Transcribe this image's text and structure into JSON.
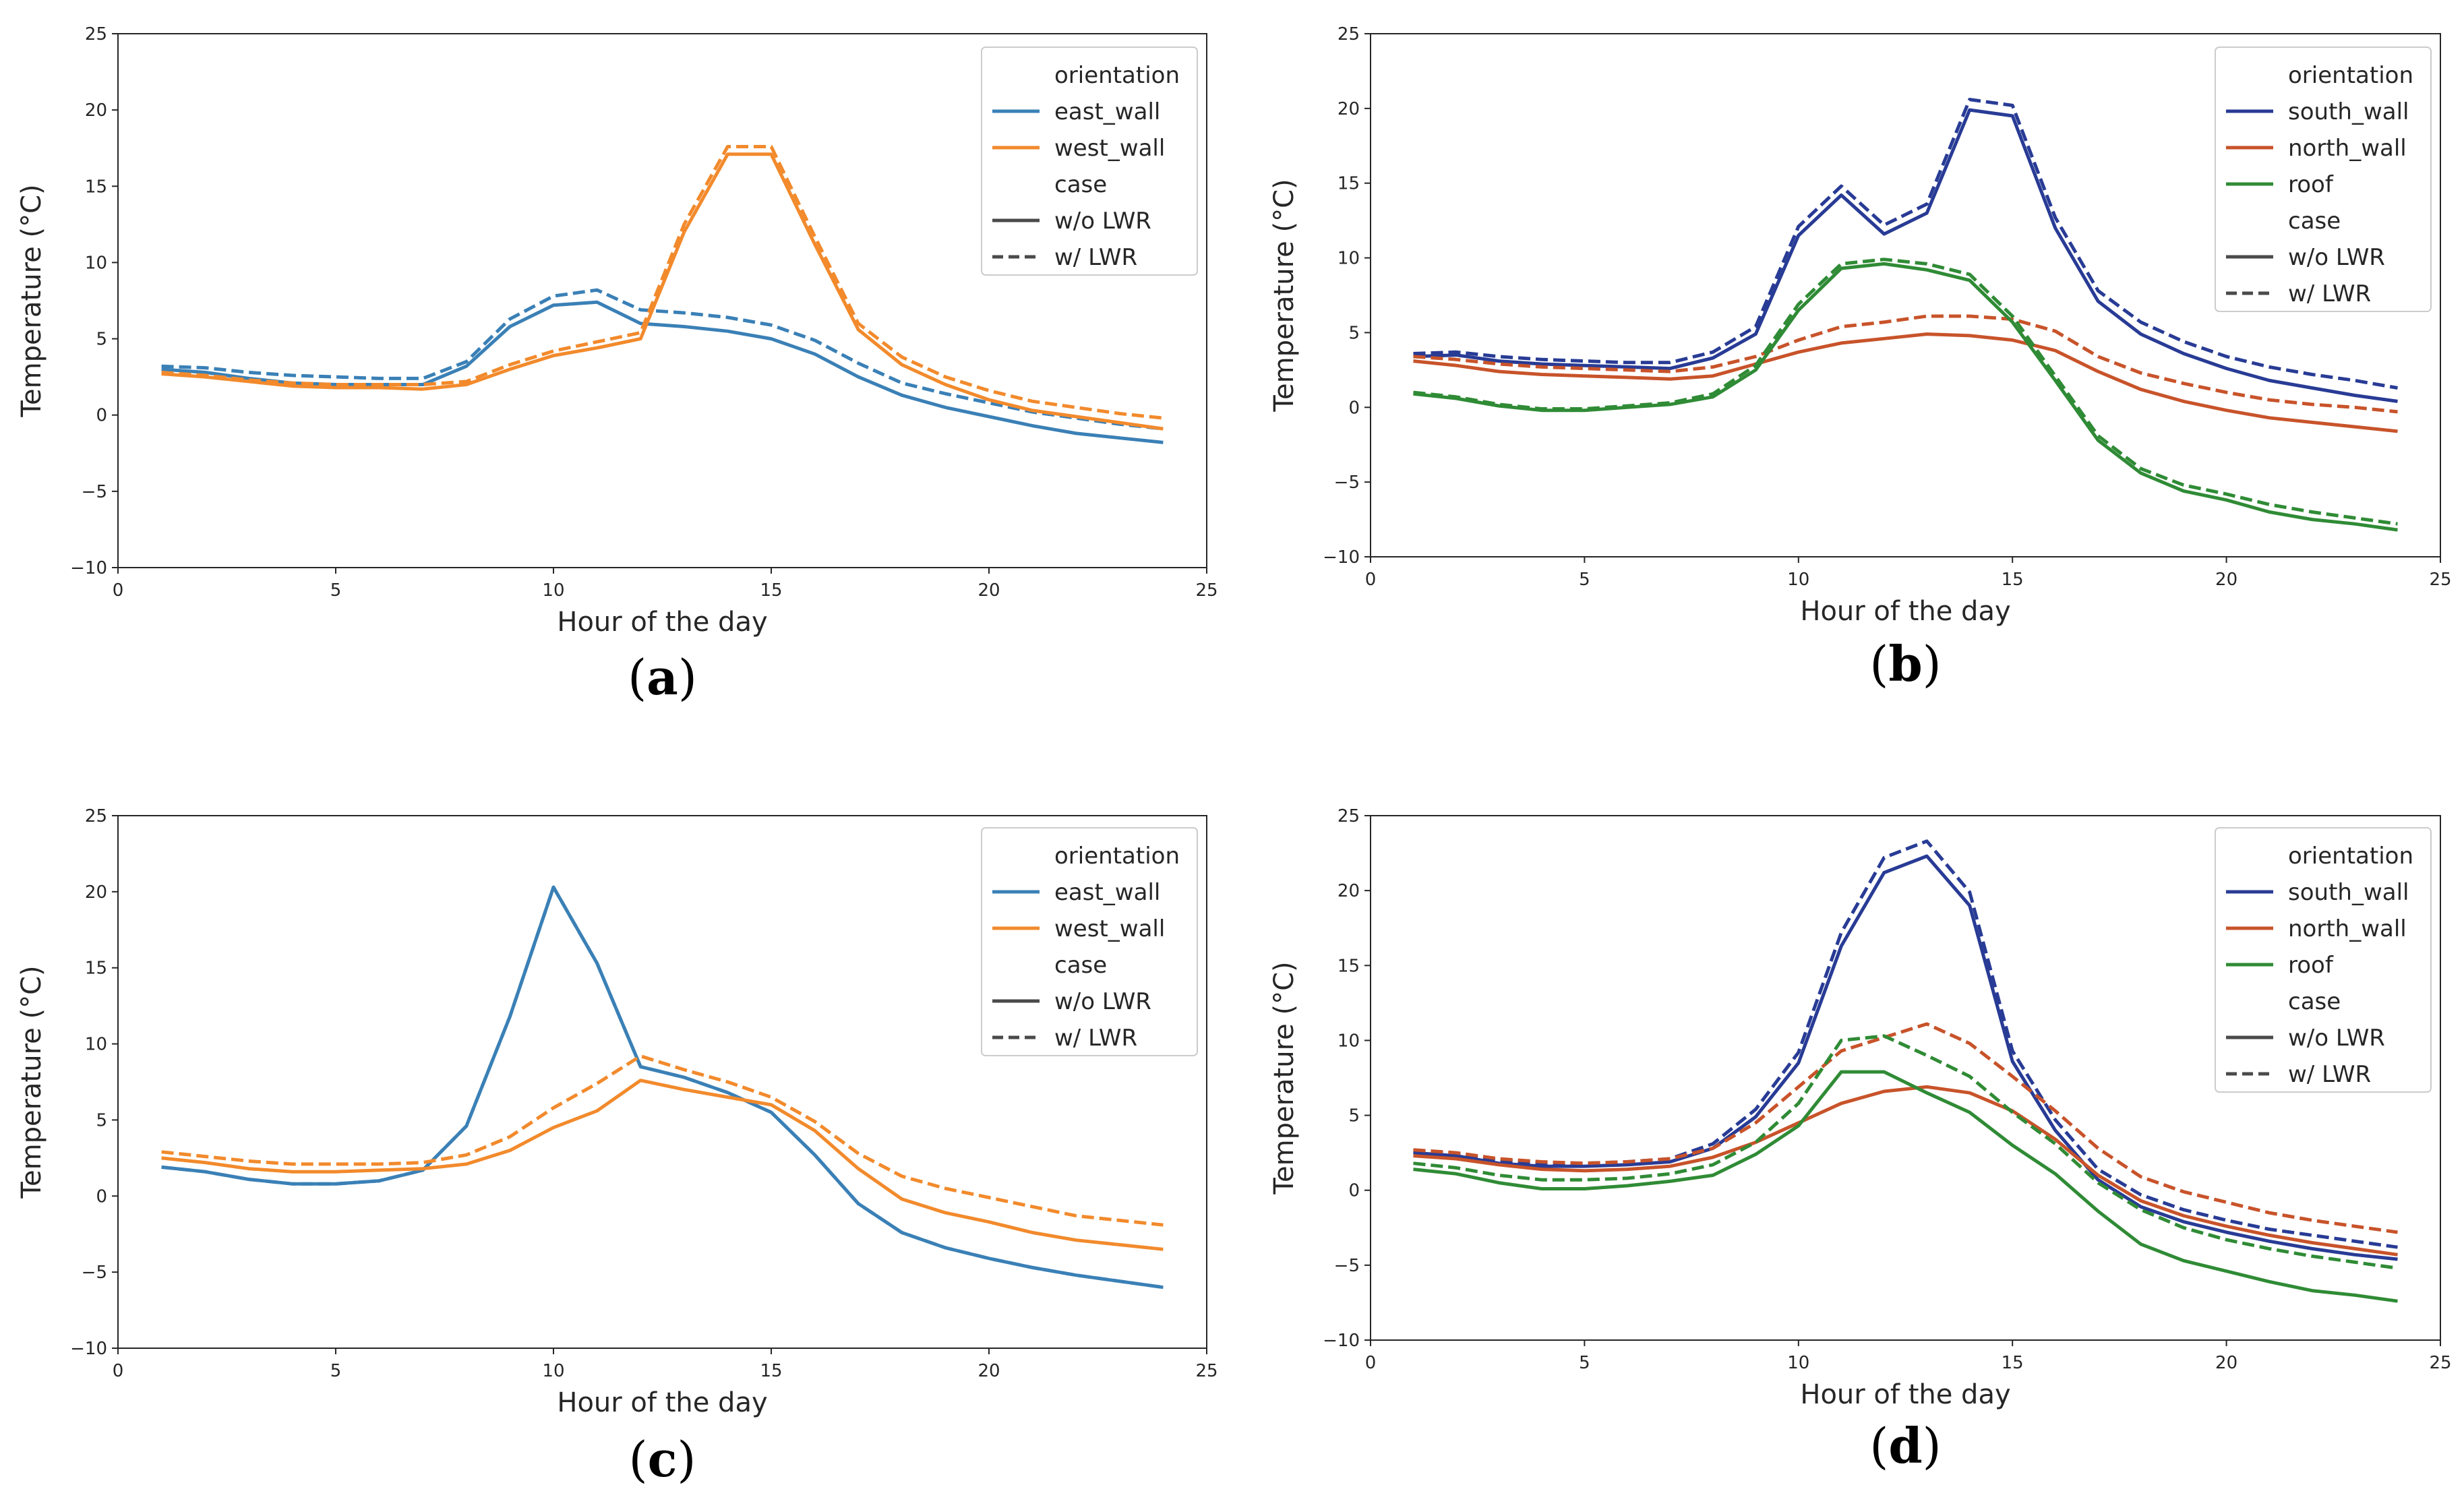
{
  "chart_data": [
    {
      "type": "line",
      "panel_label": "(a)",
      "panel_letter": "a",
      "xlabel": "Hour of the day",
      "ylabel": "Temperature (°C)",
      "xlim": [
        0,
        25
      ],
      "ylim": [
        -10,
        25
      ],
      "xticks": [
        "0",
        "5",
        "10",
        "15",
        "20",
        "25"
      ],
      "yticks": [
        "−10",
        "−5",
        "0",
        "5",
        "10",
        "15",
        "20",
        "25"
      ],
      "grid": false,
      "legend_position": "top-right",
      "legend": {
        "orientation_title": "orientation",
        "case_title": "case",
        "orientation_entries": [
          {
            "label": "east_wall",
            "color": "#3a80b6"
          },
          {
            "label": "west_wall",
            "color": "#f28a2c"
          }
        ],
        "case_entries": [
          {
            "label": "w/o LWR",
            "dash": "solid"
          },
          {
            "label": "w/ LWR",
            "dash": "dashed"
          }
        ]
      },
      "x": [
        1,
        2,
        3,
        4,
        5,
        6,
        7,
        8,
        9,
        10,
        11,
        12,
        13,
        14,
        15,
        16,
        17,
        18,
        19,
        20,
        21,
        22,
        23,
        24
      ],
      "series": [
        {
          "orientation": "east_wall",
          "case": "w/o LWR",
          "color": "#3a80b6",
          "dash": "solid",
          "values": [
            3.0,
            2.8,
            2.4,
            2.1,
            2.0,
            2.0,
            2.0,
            3.2,
            5.8,
            7.2,
            7.4,
            6.0,
            5.8,
            5.5,
            5.0,
            4.0,
            2.5,
            1.3,
            0.5,
            -0.1,
            -0.7,
            -1.2,
            -1.5,
            -1.8
          ]
        },
        {
          "orientation": "east_wall",
          "case": "w/ LWR",
          "color": "#3a80b6",
          "dash": "dashed",
          "values": [
            3.2,
            3.1,
            2.8,
            2.6,
            2.5,
            2.4,
            2.4,
            3.5,
            6.3,
            7.8,
            8.2,
            6.9,
            6.7,
            6.4,
            5.9,
            4.9,
            3.4,
            2.1,
            1.4,
            0.8,
            0.2,
            -0.2,
            -0.6,
            -0.9
          ]
        },
        {
          "orientation": "west_wall",
          "case": "w/o LWR",
          "color": "#f28a2c",
          "dash": "solid",
          "values": [
            2.7,
            2.5,
            2.2,
            1.9,
            1.8,
            1.8,
            1.7,
            2.0,
            3.0,
            3.9,
            4.4,
            5.0,
            12.0,
            17.1,
            17.1,
            11.2,
            5.6,
            3.3,
            2.0,
            1.0,
            0.3,
            -0.1,
            -0.5,
            -0.9
          ]
        },
        {
          "orientation": "west_wall",
          "case": "w/ LWR",
          "color": "#f28a2c",
          "dash": "dashed",
          "values": [
            2.8,
            2.6,
            2.3,
            2.1,
            2.0,
            2.0,
            2.0,
            2.2,
            3.3,
            4.2,
            4.8,
            5.4,
            12.5,
            17.6,
            17.6,
            11.7,
            6.0,
            3.8,
            2.5,
            1.6,
            0.9,
            0.5,
            0.1,
            -0.2
          ]
        }
      ]
    },
    {
      "type": "line",
      "panel_label": "(b)",
      "panel_letter": "b",
      "xlabel": "Hour of the day",
      "ylabel": "Temperature (°C)",
      "xlim": [
        0,
        25
      ],
      "ylim": [
        -10,
        25
      ],
      "xticks": [
        "0",
        "5",
        "10",
        "15",
        "20",
        "25"
      ],
      "yticks": [
        "−10",
        "−5",
        "0",
        "5",
        "10",
        "15",
        "20",
        "25"
      ],
      "grid": false,
      "legend_position": "top-right",
      "legend": {
        "orientation_title": "orientation",
        "case_title": "case",
        "orientation_entries": [
          {
            "label": "south_wall",
            "color": "#283b95"
          },
          {
            "label": "north_wall",
            "color": "#c8532a"
          },
          {
            "label": "roof",
            "color": "#2f8b35"
          }
        ],
        "case_entries": [
          {
            "label": "w/o LWR",
            "dash": "solid"
          },
          {
            "label": "w/ LWR",
            "dash": "dashed"
          }
        ]
      },
      "x": [
        1,
        2,
        3,
        4,
        5,
        6,
        7,
        8,
        9,
        10,
        11,
        12,
        13,
        14,
        15,
        16,
        17,
        18,
        19,
        20,
        21,
        22,
        23,
        24
      ],
      "series": [
        {
          "orientation": "south_wall",
          "case": "w/o LWR",
          "color": "#283b95",
          "dash": "solid",
          "values": [
            3.4,
            3.5,
            3.1,
            2.9,
            2.8,
            2.7,
            2.6,
            3.3,
            4.9,
            11.5,
            14.2,
            11.6,
            13.0,
            19.9,
            19.5,
            12.0,
            7.1,
            4.9,
            3.6,
            2.6,
            1.8,
            1.3,
            0.8,
            0.4
          ]
        },
        {
          "orientation": "south_wall",
          "case": "w/ LWR",
          "color": "#283b95",
          "dash": "dashed",
          "values": [
            3.6,
            3.7,
            3.4,
            3.2,
            3.1,
            3.0,
            3.0,
            3.7,
            5.4,
            12.1,
            14.8,
            12.2,
            13.6,
            20.6,
            20.2,
            12.7,
            7.8,
            5.7,
            4.4,
            3.4,
            2.7,
            2.2,
            1.8,
            1.3
          ]
        },
        {
          "orientation": "north_wall",
          "case": "w/o LWR",
          "color": "#c8532a",
          "dash": "solid",
          "values": [
            3.1,
            2.8,
            2.4,
            2.2,
            2.1,
            2.0,
            1.9,
            2.1,
            2.9,
            3.7,
            4.3,
            4.6,
            4.9,
            4.8,
            4.5,
            3.8,
            2.4,
            1.2,
            0.4,
            -0.2,
            -0.7,
            -1.0,
            -1.3,
            -1.6
          ]
        },
        {
          "orientation": "north_wall",
          "case": "w/ LWR",
          "color": "#c8532a",
          "dash": "dashed",
          "values": [
            3.4,
            3.2,
            2.9,
            2.7,
            2.6,
            2.5,
            2.4,
            2.7,
            3.4,
            4.5,
            5.4,
            5.7,
            6.1,
            6.1,
            5.9,
            5.1,
            3.4,
            2.3,
            1.6,
            1.0,
            0.5,
            0.2,
            0.0,
            -0.3
          ]
        },
        {
          "orientation": "roof",
          "case": "w/o LWR",
          "color": "#2f8b35",
          "dash": "solid",
          "values": [
            0.9,
            0.6,
            0.1,
            -0.2,
            -0.2,
            0.0,
            0.2,
            0.7,
            2.5,
            6.5,
            9.3,
            9.6,
            9.2,
            8.5,
            5.7,
            1.8,
            -2.2,
            -4.4,
            -5.6,
            -6.2,
            -7.0,
            -7.5,
            -7.8,
            -8.2
          ]
        },
        {
          "orientation": "roof",
          "case": "w/ LWR",
          "color": "#2f8b35",
          "dash": "dashed",
          "values": [
            1.0,
            0.7,
            0.2,
            -0.1,
            -0.1,
            0.1,
            0.3,
            0.9,
            2.8,
            6.9,
            9.6,
            9.9,
            9.6,
            8.9,
            6.1,
            2.1,
            -1.9,
            -4.1,
            -5.2,
            -5.8,
            -6.5,
            -7.0,
            -7.4,
            -7.8
          ]
        }
      ]
    },
    {
      "type": "line",
      "panel_label": "(c)",
      "panel_letter": "c",
      "xlabel": "Hour of the day",
      "ylabel": "Temperature (°C)",
      "xlim": [
        0,
        25
      ],
      "ylim": [
        -10,
        25
      ],
      "xticks": [
        "0",
        "5",
        "10",
        "15",
        "20",
        "25"
      ],
      "yticks": [
        "−10",
        "−5",
        "0",
        "5",
        "10",
        "15",
        "20",
        "25"
      ],
      "grid": false,
      "legend_position": "top-right",
      "legend": {
        "orientation_title": "orientation",
        "case_title": "case",
        "orientation_entries": [
          {
            "label": "east_wall",
            "color": "#3a80b6"
          },
          {
            "label": "west_wall",
            "color": "#f28a2c"
          }
        ],
        "case_entries": [
          {
            "label": "w/o LWR",
            "dash": "solid"
          },
          {
            "label": "w/ LWR",
            "dash": "dashed"
          }
        ]
      },
      "x": [
        1,
        2,
        3,
        4,
        5,
        6,
        7,
        8,
        9,
        10,
        11,
        12,
        13,
        14,
        15,
        16,
        17,
        18,
        19,
        20,
        21,
        22,
        23,
        24
      ],
      "series": [
        {
          "orientation": "east_wall",
          "case": "w/o LWR",
          "color": "#3a80b6",
          "dash": "solid",
          "values": [
            1.9,
            1.6,
            1.1,
            0.8,
            0.8,
            1.0,
            1.7,
            4.6,
            11.8,
            20.3,
            15.3,
            8.5,
            7.8,
            6.8,
            5.5,
            2.7,
            -0.5,
            -2.4,
            -3.4,
            -4.1,
            -4.7,
            -5.2,
            -5.6,
            -6.0
          ]
        },
        {
          "orientation": "east_wall",
          "case": "w/ LWR",
          "color": "#3a80b6",
          "dash": "dashed",
          "values": [
            1.9,
            1.6,
            1.1,
            0.8,
            0.8,
            1.0,
            1.7,
            4.6,
            11.8,
            20.3,
            15.3,
            8.5,
            7.8,
            6.8,
            5.5,
            2.7,
            -0.5,
            -2.4,
            -3.4,
            -4.1,
            -4.7,
            -5.2,
            -5.6,
            -6.0
          ]
        },
        {
          "orientation": "west_wall",
          "case": "w/o LWR",
          "color": "#f28a2c",
          "dash": "solid",
          "values": [
            2.5,
            2.2,
            1.8,
            1.6,
            1.6,
            1.7,
            1.8,
            2.1,
            3.0,
            4.5,
            5.6,
            7.6,
            7.0,
            6.5,
            6.0,
            4.3,
            1.8,
            -0.2,
            -1.1,
            -1.7,
            -2.4,
            -2.9,
            -3.2,
            -3.5
          ]
        },
        {
          "orientation": "west_wall",
          "case": "w/ LWR",
          "color": "#f28a2c",
          "dash": "dashed",
          "values": [
            2.9,
            2.6,
            2.3,
            2.1,
            2.1,
            2.1,
            2.2,
            2.7,
            3.9,
            5.8,
            7.4,
            9.2,
            8.3,
            7.5,
            6.5,
            4.9,
            2.8,
            1.3,
            0.5,
            -0.1,
            -0.7,
            -1.3,
            -1.6,
            -1.9
          ]
        }
      ]
    },
    {
      "type": "line",
      "panel_label": "(d)",
      "panel_letter": "d",
      "xlabel": "Hour of the day",
      "ylabel": "Temperature (°C)",
      "xlim": [
        0,
        25
      ],
      "ylim": [
        -10,
        25
      ],
      "xticks": [
        "0",
        "5",
        "10",
        "15",
        "20",
        "25"
      ],
      "yticks": [
        "−10",
        "−5",
        "0",
        "5",
        "10",
        "15",
        "20",
        "25"
      ],
      "grid": false,
      "legend_position": "top-right",
      "legend": {
        "orientation_title": "orientation",
        "case_title": "case",
        "orientation_entries": [
          {
            "label": "south_wall",
            "color": "#283b95"
          },
          {
            "label": "north_wall",
            "color": "#c8532a"
          },
          {
            "label": "roof",
            "color": "#2f8b35"
          }
        ],
        "case_entries": [
          {
            "label": "w/o LWR",
            "dash": "solid"
          },
          {
            "label": "w/ LWR",
            "dash": "dashed"
          }
        ]
      },
      "x": [
        1,
        2,
        3,
        4,
        5,
        6,
        7,
        8,
        9,
        10,
        11,
        12,
        13,
        14,
        15,
        16,
        17,
        18,
        19,
        20,
        21,
        22,
        23,
        24
      ],
      "series": [
        {
          "orientation": "south_wall",
          "case": "w/o LWR",
          "color": "#283b95",
          "dash": "solid",
          "values": [
            2.5,
            2.3,
            1.8,
            1.6,
            1.6,
            1.7,
            1.9,
            2.8,
            4.9,
            8.5,
            16.3,
            21.2,
            22.3,
            19.0,
            8.6,
            4.0,
            0.7,
            -1.1,
            -2.1,
            -2.8,
            -3.4,
            -3.9,
            -4.3,
            -4.6
          ]
        },
        {
          "orientation": "south_wall",
          "case": "w/ LWR",
          "color": "#283b95",
          "dash": "dashed",
          "values": [
            2.6,
            2.4,
            2.0,
            1.8,
            1.8,
            1.9,
            2.1,
            3.1,
            5.4,
            9.2,
            17.2,
            22.2,
            23.3,
            19.9,
            9.3,
            4.7,
            1.4,
            -0.3,
            -1.3,
            -2.0,
            -2.6,
            -3.0,
            -3.4,
            -3.8
          ]
        },
        {
          "orientation": "north_wall",
          "case": "w/o LWR",
          "color": "#c8532a",
          "dash": "solid",
          "values": [
            2.3,
            2.1,
            1.7,
            1.4,
            1.3,
            1.4,
            1.6,
            2.2,
            3.2,
            4.5,
            5.8,
            6.6,
            6.9,
            6.5,
            5.3,
            3.4,
            1.0,
            -0.7,
            -1.7,
            -2.4,
            -3.0,
            -3.5,
            -3.9,
            -4.3
          ]
        },
        {
          "orientation": "north_wall",
          "case": "w/ LWR",
          "color": "#c8532a",
          "dash": "dashed",
          "values": [
            2.7,
            2.5,
            2.1,
            1.9,
            1.8,
            1.9,
            2.1,
            2.8,
            4.5,
            6.9,
            9.3,
            10.2,
            11.1,
            9.8,
            7.6,
            5.3,
            2.8,
            0.9,
            -0.1,
            -0.8,
            -1.5,
            -2.0,
            -2.4,
            -2.8
          ]
        },
        {
          "orientation": "roof",
          "case": "w/o LWR",
          "color": "#2f8b35",
          "dash": "solid",
          "values": [
            1.4,
            1.1,
            0.5,
            0.1,
            0.1,
            0.3,
            0.6,
            1.0,
            2.4,
            4.3,
            7.9,
            7.9,
            6.5,
            5.2,
            3.0,
            1.1,
            -1.4,
            -3.6,
            -4.7,
            -5.4,
            -6.1,
            -6.7,
            -7.0,
            -7.4
          ]
        },
        {
          "orientation": "roof",
          "case": "w/ LWR",
          "color": "#2f8b35",
          "dash": "dashed",
          "values": [
            1.8,
            1.5,
            1.0,
            0.7,
            0.7,
            0.8,
            1.1,
            1.7,
            3.2,
            5.8,
            10.0,
            10.3,
            9.0,
            7.6,
            5.2,
            3.1,
            0.5,
            -1.3,
            -2.5,
            -3.3,
            -3.9,
            -4.4,
            -4.8,
            -5.2
          ]
        }
      ]
    }
  ]
}
